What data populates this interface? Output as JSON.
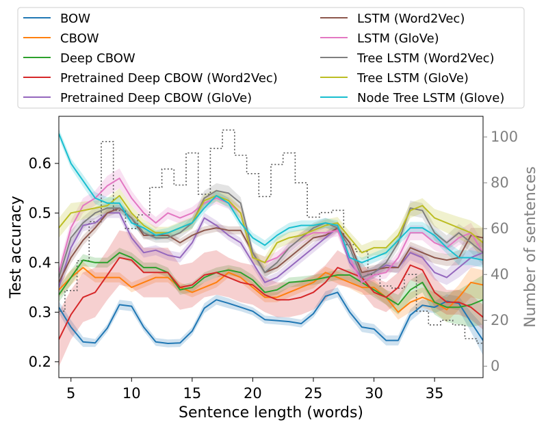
{
  "chart_data": {
    "type": "line",
    "xlabel": "Sentence length (words)",
    "ylabel": "Test accuracy",
    "y2label": "Number of sentences",
    "xlim": [
      4,
      39
    ],
    "ylim": [
      0.168,
      0.695
    ],
    "y2lim": [
      -5,
      109
    ],
    "xticks": [
      5,
      10,
      15,
      20,
      25,
      30,
      35
    ],
    "yticks": [
      0.2,
      0.3,
      0.4,
      0.5,
      0.6
    ],
    "y2ticks": [
      0,
      20,
      40,
      60,
      80,
      100
    ],
    "legend_position": "top",
    "x": [
      4,
      5,
      6,
      7,
      8,
      9,
      10,
      11,
      12,
      13,
      14,
      15,
      16,
      17,
      18,
      19,
      20,
      21,
      22,
      23,
      24,
      25,
      26,
      27,
      28,
      29,
      30,
      31,
      32,
      33,
      34,
      35,
      36,
      37,
      38,
      39
    ],
    "series": [
      {
        "name": "BOW",
        "color": "#1f77b4",
        "values": [
          0.31,
          0.27,
          0.24,
          0.238,
          0.268,
          0.315,
          0.312,
          0.27,
          0.24,
          0.237,
          0.238,
          0.262,
          0.308,
          0.325,
          0.318,
          0.31,
          0.302,
          0.285,
          0.283,
          0.281,
          0.277,
          0.297,
          0.332,
          0.34,
          0.3,
          0.27,
          0.266,
          0.243,
          0.243,
          0.294,
          0.314,
          0.31,
          0.322,
          0.318,
          0.28,
          0.243
        ],
        "band": [
          0.012,
          0.014,
          0.01,
          0.008,
          0.008,
          0.01,
          0.01,
          0.008,
          0.008,
          0.008,
          0.008,
          0.008,
          0.01,
          0.01,
          0.01,
          0.008,
          0.008,
          0.008,
          0.008,
          0.008,
          0.008,
          0.008,
          0.01,
          0.01,
          0.01,
          0.01,
          0.01,
          0.01,
          0.01,
          0.012,
          0.012,
          0.012,
          0.014,
          0.014,
          0.02,
          0.03
        ]
      },
      {
        "name": "CBOW",
        "color": "#ff7f0e",
        "values": [
          0.345,
          0.37,
          0.39,
          0.37,
          0.37,
          0.37,
          0.35,
          0.36,
          0.37,
          0.37,
          0.35,
          0.34,
          0.35,
          0.36,
          0.38,
          0.37,
          0.35,
          0.33,
          0.33,
          0.34,
          0.35,
          0.36,
          0.38,
          0.37,
          0.36,
          0.35,
          0.35,
          0.33,
          0.3,
          0.32,
          0.33,
          0.32,
          0.305,
          0.33,
          0.36,
          0.355
        ],
        "band": [
          0.015,
          0.015,
          0.012,
          0.01,
          0.01,
          0.01,
          0.01,
          0.01,
          0.01,
          0.01,
          0.01,
          0.01,
          0.01,
          0.01,
          0.01,
          0.01,
          0.01,
          0.01,
          0.01,
          0.01,
          0.01,
          0.012,
          0.012,
          0.012,
          0.012,
          0.015,
          0.015,
          0.015,
          0.015,
          0.02,
          0.02,
          0.02,
          0.025,
          0.025,
          0.03,
          0.03
        ]
      },
      {
        "name": "Deep CBOW",
        "color": "#2ca02c",
        "values": [
          0.335,
          0.37,
          0.405,
          0.4,
          0.4,
          0.42,
          0.41,
          0.39,
          0.39,
          0.38,
          0.345,
          0.35,
          0.37,
          0.38,
          0.385,
          0.38,
          0.365,
          0.34,
          0.345,
          0.36,
          0.362,
          0.365,
          0.37,
          0.375,
          0.375,
          0.36,
          0.345,
          0.33,
          0.315,
          0.345,
          0.36,
          0.32,
          0.31,
          0.31,
          0.315,
          0.325
        ],
        "band": [
          0.015,
          0.015,
          0.012,
          0.01,
          0.01,
          0.01,
          0.01,
          0.01,
          0.01,
          0.01,
          0.01,
          0.01,
          0.01,
          0.01,
          0.01,
          0.01,
          0.01,
          0.01,
          0.01,
          0.01,
          0.01,
          0.01,
          0.01,
          0.01,
          0.012,
          0.012,
          0.015,
          0.015,
          0.02,
          0.02,
          0.02,
          0.025,
          0.03,
          0.035,
          0.045,
          0.05
        ]
      },
      {
        "name": "Pretrained Deep CBOW (Word2Vec)",
        "color": "#d62728",
        "values": [
          0.245,
          0.295,
          0.33,
          0.34,
          0.375,
          0.41,
          0.405,
          0.38,
          0.38,
          0.38,
          0.35,
          0.355,
          0.375,
          0.38,
          0.37,
          0.36,
          0.355,
          0.335,
          0.325,
          0.325,
          0.33,
          0.34,
          0.36,
          0.39,
          0.38,
          0.37,
          0.34,
          0.33,
          0.35,
          0.395,
          0.385,
          0.34,
          0.32,
          0.32,
          0.31,
          0.29
        ],
        "band": [
          0.055,
          0.05,
          0.05,
          0.05,
          0.05,
          0.055,
          0.055,
          0.05,
          0.05,
          0.05,
          0.045,
          0.045,
          0.045,
          0.045,
          0.04,
          0.04,
          0.04,
          0.035,
          0.035,
          0.035,
          0.035,
          0.035,
          0.035,
          0.035,
          0.03,
          0.03,
          0.03,
          0.03,
          0.03,
          0.03,
          0.03,
          0.03,
          0.025,
          0.025,
          0.025,
          0.025
        ]
      },
      {
        "name": "Pretrained Deep CBOW (GloVe)",
        "color": "#9467bd",
        "values": [
          0.35,
          0.43,
          0.475,
          0.48,
          0.5,
          0.5,
          0.45,
          0.42,
          0.425,
          0.415,
          0.41,
          0.44,
          0.49,
          0.475,
          0.455,
          0.44,
          0.4,
          0.36,
          0.37,
          0.39,
          0.41,
          0.43,
          0.45,
          0.47,
          0.4,
          0.37,
          0.38,
          0.395,
          0.39,
          0.42,
          0.41,
          0.38,
          0.37,
          0.39,
          0.41,
          0.42
        ],
        "band": [
          0.02,
          0.015,
          0.012,
          0.01,
          0.01,
          0.01,
          0.01,
          0.01,
          0.01,
          0.01,
          0.01,
          0.01,
          0.01,
          0.01,
          0.01,
          0.01,
          0.01,
          0.01,
          0.01,
          0.01,
          0.01,
          0.01,
          0.01,
          0.01,
          0.01,
          0.012,
          0.012,
          0.012,
          0.012,
          0.015,
          0.015,
          0.015,
          0.015,
          0.02,
          0.02,
          0.025
        ]
      },
      {
        "name": "LSTM (Word2Vec)",
        "color": "#8c564b",
        "values": [
          0.36,
          0.41,
          0.445,
          0.47,
          0.5,
          0.51,
          0.49,
          0.455,
          0.455,
          0.455,
          0.44,
          0.455,
          0.465,
          0.47,
          0.465,
          0.465,
          0.42,
          0.38,
          0.39,
          0.41,
          0.43,
          0.45,
          0.455,
          0.47,
          0.44,
          0.38,
          0.385,
          0.39,
          0.39,
          0.43,
          0.42,
          0.41,
          0.405,
          0.41,
          0.455,
          0.45
        ],
        "band": [
          0.012,
          0.012,
          0.01,
          0.01,
          0.008,
          0.008,
          0.008,
          0.008,
          0.008,
          0.008,
          0.008,
          0.008,
          0.008,
          0.008,
          0.008,
          0.008,
          0.008,
          0.008,
          0.008,
          0.008,
          0.008,
          0.008,
          0.008,
          0.008,
          0.008,
          0.01,
          0.01,
          0.01,
          0.01,
          0.012,
          0.012,
          0.012,
          0.012,
          0.015,
          0.015,
          0.02
        ]
      },
      {
        "name": "LSTM (GloVe)",
        "color": "#e377c2",
        "values": [
          0.38,
          0.47,
          0.515,
          0.53,
          0.555,
          0.57,
          0.53,
          0.5,
          0.48,
          0.5,
          0.49,
          0.5,
          0.52,
          0.53,
          0.52,
          0.5,
          0.41,
          0.4,
          0.41,
          0.43,
          0.45,
          0.46,
          0.46,
          0.465,
          0.41,
          0.36,
          0.375,
          0.38,
          0.41,
          0.46,
          0.46,
          0.44,
          0.43,
          0.45,
          0.46,
          0.42
        ],
        "band": [
          0.015,
          0.015,
          0.015,
          0.015,
          0.02,
          0.02,
          0.015,
          0.012,
          0.012,
          0.012,
          0.012,
          0.012,
          0.012,
          0.012,
          0.012,
          0.012,
          0.012,
          0.012,
          0.012,
          0.012,
          0.012,
          0.012,
          0.012,
          0.012,
          0.012,
          0.012,
          0.012,
          0.012,
          0.012,
          0.015,
          0.015,
          0.015,
          0.015,
          0.015,
          0.02,
          0.02
        ]
      },
      {
        "name": "Tree LSTM (Word2Vec)",
        "color": "#7f7f7f",
        "values": [
          0.37,
          0.45,
          0.48,
          0.5,
          0.51,
          0.51,
          0.49,
          0.46,
          0.45,
          0.45,
          0.46,
          0.48,
          0.53,
          0.545,
          0.54,
          0.52,
          0.42,
          0.38,
          0.4,
          0.43,
          0.45,
          0.47,
          0.48,
          0.47,
          0.43,
          0.37,
          0.38,
          0.4,
          0.44,
          0.51,
          0.505,
          0.46,
          0.44,
          0.46,
          0.44,
          0.42
        ],
        "band": [
          0.015,
          0.015,
          0.012,
          0.012,
          0.01,
          0.01,
          0.01,
          0.01,
          0.01,
          0.01,
          0.01,
          0.012,
          0.015,
          0.015,
          0.015,
          0.012,
          0.012,
          0.012,
          0.01,
          0.01,
          0.01,
          0.01,
          0.01,
          0.01,
          0.01,
          0.012,
          0.012,
          0.012,
          0.012,
          0.015,
          0.015,
          0.015,
          0.015,
          0.018,
          0.02,
          0.025
        ]
      },
      {
        "name": "Tree LSTM (GloVe)",
        "color": "#bcbd22",
        "values": [
          0.47,
          0.5,
          0.505,
          0.51,
          0.515,
          0.535,
          0.5,
          0.475,
          0.46,
          0.46,
          0.47,
          0.48,
          0.525,
          0.535,
          0.525,
          0.5,
          0.41,
          0.4,
          0.44,
          0.45,
          0.455,
          0.465,
          0.475,
          0.48,
          0.45,
          0.42,
          0.43,
          0.43,
          0.455,
          0.505,
          0.515,
          0.49,
          0.48,
          0.47,
          0.46,
          0.44
        ],
        "band": [
          0.02,
          0.02,
          0.018,
          0.015,
          0.015,
          0.015,
          0.015,
          0.012,
          0.012,
          0.012,
          0.012,
          0.012,
          0.012,
          0.012,
          0.012,
          0.012,
          0.012,
          0.012,
          0.012,
          0.012,
          0.012,
          0.012,
          0.012,
          0.012,
          0.012,
          0.015,
          0.015,
          0.015,
          0.015,
          0.015,
          0.015,
          0.018,
          0.02,
          0.022,
          0.025,
          0.03
        ]
      },
      {
        "name": "Node Tree LSTM (Glove)",
        "color": "#17becf",
        "values": [
          0.66,
          0.6,
          0.565,
          0.53,
          0.52,
          0.52,
          0.48,
          0.47,
          0.455,
          0.46,
          0.47,
          0.48,
          0.51,
          0.535,
          0.52,
          0.48,
          0.45,
          0.435,
          0.455,
          0.47,
          0.475,
          0.475,
          0.48,
          0.475,
          0.41,
          0.4,
          0.41,
          0.42,
          0.445,
          0.47,
          0.47,
          0.455,
          0.43,
          0.41,
          0.41,
          0.405
        ],
        "band": [
          0.01,
          0.01,
          0.012,
          0.012,
          0.012,
          0.012,
          0.01,
          0.01,
          0.01,
          0.01,
          0.01,
          0.01,
          0.01,
          0.01,
          0.01,
          0.01,
          0.01,
          0.01,
          0.01,
          0.01,
          0.01,
          0.01,
          0.01,
          0.01,
          0.01,
          0.01,
          0.01,
          0.01,
          0.01,
          0.012,
          0.012,
          0.012,
          0.012,
          0.015,
          0.015,
          0.015
        ]
      }
    ],
    "histogram": {
      "axis": "right",
      "style": "dotted-step",
      "color": "#555555",
      "x": [
        4,
        5,
        6,
        7,
        8,
        9,
        10,
        11,
        12,
        13,
        14,
        15,
        16,
        17,
        18,
        19,
        20,
        21,
        22,
        23,
        24,
        25,
        26,
        27,
        28,
        29,
        30,
        31,
        32,
        33,
        34,
        35,
        36,
        37,
        38,
        39
      ],
      "values": [
        24,
        33,
        46,
        63,
        98,
        68,
        60,
        66,
        78,
        86,
        79,
        93,
        75,
        95,
        103,
        92,
        84,
        74,
        88,
        93,
        80,
        65,
        67,
        68,
        53,
        50,
        40,
        35,
        34,
        40,
        24,
        18,
        20,
        18,
        12,
        10
      ]
    }
  }
}
